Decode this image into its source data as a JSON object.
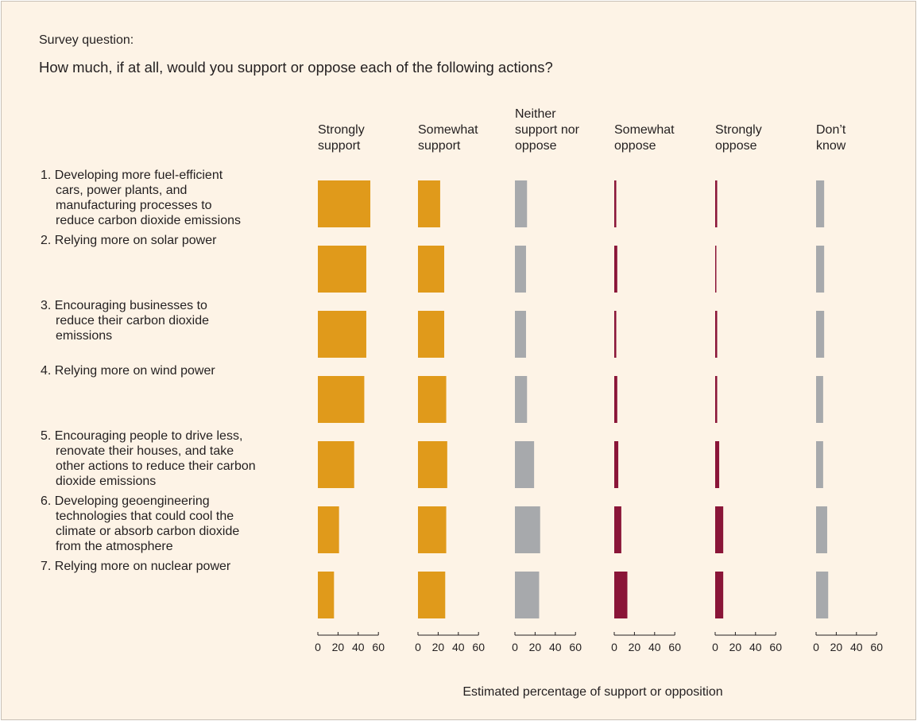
{
  "survey_label": "Survey question:",
  "question": "How much, if at all, would you support or oppose each of the following actions?",
  "colors": {
    "support": "#e09a1b",
    "neutral": "#a7a9ac",
    "oppose": "#8a1538",
    "background": "#fdf3e6"
  },
  "chart_data": {
    "type": "bar",
    "orientation": "horizontal",
    "layout": "small-multiples",
    "xlabel": "Estimated percentage of support or opposition",
    "xlim": [
      0,
      60
    ],
    "xticks": [
      0,
      20,
      40,
      60
    ],
    "series": [
      {
        "name": "Strongly support",
        "header_lines": [
          "Strongly",
          "support"
        ],
        "group": "support",
        "values": [
          52,
          48,
          48,
          46,
          36,
          21,
          16
        ]
      },
      {
        "name": "Somewhat support",
        "header_lines": [
          "Somewhat",
          "support"
        ],
        "group": "support",
        "values": [
          22,
          26,
          26,
          28,
          29,
          28,
          27
        ]
      },
      {
        "name": "Neither support nor oppose",
        "header_lines": [
          "Neither",
          "support nor",
          "oppose"
        ],
        "group": "neutral",
        "values": [
          12,
          11,
          11,
          12,
          19,
          25,
          24
        ]
      },
      {
        "name": "Somewhat oppose",
        "header_lines": [
          "Somewhat",
          "oppose"
        ],
        "group": "oppose",
        "values": [
          2,
          3,
          2,
          3,
          4,
          7,
          13
        ]
      },
      {
        "name": "Strongly oppose",
        "header_lines": [
          "Strongly",
          "oppose"
        ],
        "group": "oppose",
        "values": [
          2,
          1,
          2,
          2,
          4,
          8,
          8
        ]
      },
      {
        "name": "Don't know",
        "header_lines": [
          "Don’t",
          "know"
        ],
        "group": "neutral",
        "values": [
          8,
          8,
          8,
          7,
          7,
          11,
          12
        ]
      }
    ],
    "categories": [
      {
        "label": "1. Developing more fuel-efficient cars, power plants, and manufacturing processes to reduce carbon dioxide emissions",
        "lines": [
          "1. Developing more fuel-efficient",
          "cars, power plants, and",
          "manufacturing processes to",
          "reduce carbon dioxide emissions"
        ]
      },
      {
        "label": "2. Relying more on solar power",
        "lines": [
          "2. Relying more on solar power"
        ]
      },
      {
        "label": "3. Encouraging businesses to reduce their carbon dioxide emissions",
        "lines": [
          "3. Encouraging businesses to",
          "reduce their carbon dioxide",
          "emissions"
        ]
      },
      {
        "label": "4. Relying more on wind power",
        "lines": [
          "4. Relying more on wind power"
        ]
      },
      {
        "label": "5. Encouraging people to drive less, renovate their houses, and take other actions to reduce their carbon dioxide emissions",
        "lines": [
          "5. Encouraging people to drive less,",
          "renovate their houses, and take",
          "other actions to reduce their carbon",
          "dioxide emissions"
        ]
      },
      {
        "label": "6. Developing geoengineering technologies that could cool the climate or absorb carbon dioxide from the atmosphere",
        "lines": [
          "6. Developing geoengineering",
          "technologies that could cool the",
          "climate or absorb carbon dioxide",
          "from the atmosphere"
        ]
      },
      {
        "label": "7. Relying more on nuclear power",
        "lines": [
          "7. Relying more on nuclear power"
        ]
      }
    ]
  }
}
